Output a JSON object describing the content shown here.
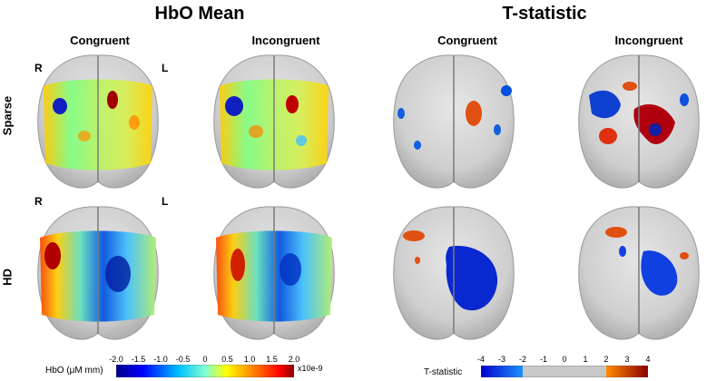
{
  "titles": {
    "hbo_mean": "HbO Mean",
    "t_statistic": "T-statistic"
  },
  "columns": {
    "hbo_congruent": "Congruent",
    "hbo_incongruent": "Incongruent",
    "t_congruent": "Congruent",
    "t_incongruent": "Incongruent"
  },
  "rows": {
    "sparse": "Sparse",
    "hd": "HD"
  },
  "hemisphere": {
    "right": "R",
    "left": "L"
  },
  "colorbar_hbo": {
    "label": "HbO (μM mm)",
    "ticks": [
      "-2.0",
      "-1.5",
      "-1.0",
      "-0.5",
      "0",
      "0.5",
      "1.0",
      "1.5",
      "2.0"
    ],
    "exponent": "x10e-9",
    "colors": [
      "#00008b",
      "#0000ff",
      "#00bfff",
      "#7fffd4",
      "#ffff00",
      "#ff8c00",
      "#ff0000",
      "#8b0000"
    ]
  },
  "colorbar_t": {
    "label": "T-statistic",
    "ticks": [
      "-4",
      "-3",
      "-2",
      "-1",
      "0",
      "1",
      "2",
      "3",
      "4"
    ],
    "colors": [
      "#0000cc",
      "#1e90ff",
      "#c8c8c8",
      "#ff8c00",
      "#8b0000"
    ]
  }
}
